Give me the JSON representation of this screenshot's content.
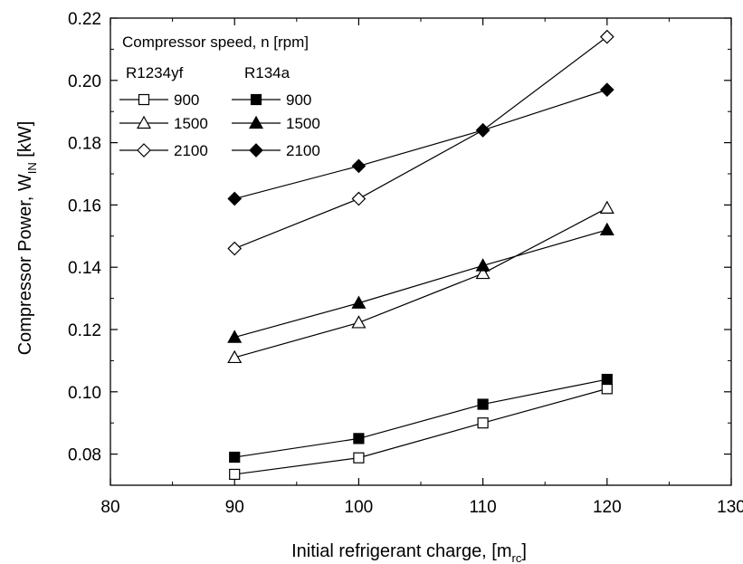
{
  "chart_data": {
    "type": "line",
    "title": "",
    "xlabel": "Initial refrigerant charge, [m",
    "xlabel_sub": "rc",
    "xlabel_end": "]",
    "ylabel": "Compressor Power, W",
    "ylabel_sub": "IN",
    "ylabel_end": " [kW]",
    "xlim": [
      80,
      130
    ],
    "ylim": [
      0.07,
      0.22
    ],
    "x_ticks": [
      80,
      90,
      100,
      110,
      120,
      130
    ],
    "x_tick_labels": [
      "80",
      "90",
      "100",
      "110",
      "120",
      "130"
    ],
    "y_ticks": [
      0.08,
      0.1,
      0.12,
      0.14,
      0.16,
      0.18,
      0.2,
      0.22
    ],
    "y_tick_labels": [
      "0.08",
      "0.10",
      "0.12",
      "0.14",
      "0.16",
      "0.18",
      "0.20",
      "0.22"
    ],
    "grid": false,
    "legend": {
      "title": "Compressor speed, n [rpm]",
      "col_headers": [
        "R1234yf",
        "R134a"
      ],
      "placement": "top-left"
    },
    "x": [
      90,
      100,
      110,
      120
    ],
    "series": [
      {
        "name": "900",
        "refrigerant": "R1234yf",
        "marker": "square",
        "filled": false,
        "values": [
          0.0735,
          0.0788,
          0.09,
          0.101
        ]
      },
      {
        "name": "1500",
        "refrigerant": "R1234yf",
        "marker": "triangle",
        "filled": false,
        "values": [
          0.111,
          0.1222,
          0.138,
          0.159
        ]
      },
      {
        "name": "2100",
        "refrigerant": "R1234yf",
        "marker": "diamond",
        "filled": false,
        "values": [
          0.146,
          0.162,
          0.184,
          0.214
        ]
      },
      {
        "name": "900",
        "refrigerant": "R134a",
        "marker": "square",
        "filled": true,
        "values": [
          0.079,
          0.085,
          0.096,
          0.104
        ]
      },
      {
        "name": "1500",
        "refrigerant": "R134a",
        "marker": "triangle",
        "filled": true,
        "values": [
          0.1175,
          0.1285,
          0.1405,
          0.152
        ]
      },
      {
        "name": "2100",
        "refrigerant": "R134a",
        "marker": "diamond",
        "filled": true,
        "values": [
          0.162,
          0.1725,
          0.184,
          0.197
        ]
      }
    ]
  }
}
